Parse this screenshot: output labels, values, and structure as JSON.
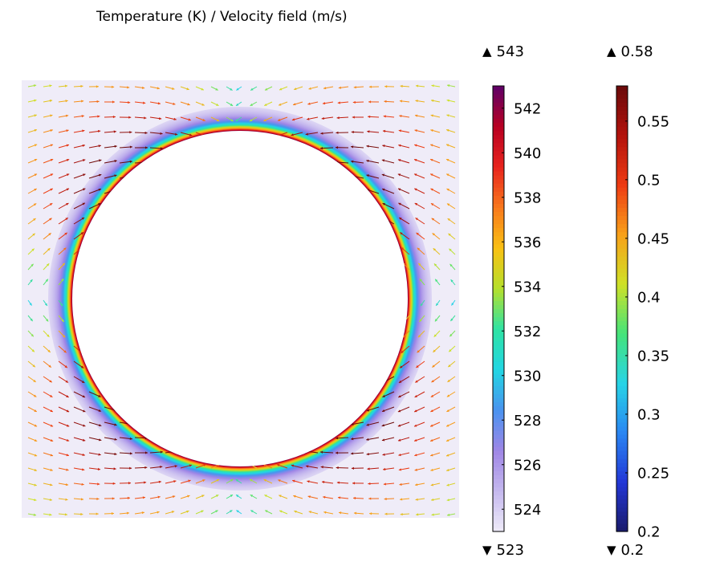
{
  "chart_data": {
    "type": "heatmap",
    "title": "Temperature (K) / Velocity field (m/s)",
    "temperature_colorbar": {
      "max_label": "543",
      "min_label": "523",
      "range": [
        523,
        543
      ],
      "ticks": [
        "542",
        "540",
        "538",
        "536",
        "534",
        "532",
        "530",
        "528",
        "526",
        "524"
      ],
      "tick_values": [
        542,
        540,
        538,
        536,
        534,
        532,
        530,
        528,
        526,
        524
      ],
      "colormap": [
        "#efecf8",
        "#c5b8ee",
        "#9f86e6",
        "#4a93ef",
        "#22d6e3",
        "#2fe3a4",
        "#b5e02c",
        "#f9c113",
        "#f9791d",
        "#e8241d",
        "#b80022",
        "#5e0067"
      ]
    },
    "velocity_colorbar": {
      "max_label": "0.58",
      "min_label": "0.2",
      "range": [
        0.2,
        0.58
      ],
      "ticks": [
        "0.55",
        "0.5",
        "0.45",
        "0.4",
        "0.35",
        "0.3",
        "0.25",
        "0.2"
      ],
      "tick_values": [
        0.55,
        0.5,
        0.45,
        0.4,
        0.35,
        0.3,
        0.25,
        0.2
      ],
      "colormap": [
        "#1a1b6a",
        "#2337d6",
        "#2a86f2",
        "#27d4e6",
        "#45e37a",
        "#cfe127",
        "#f8a11a",
        "#ee3b13",
        "#b3130c",
        "#6a0a0a"
      ]
    },
    "domain": {
      "background_temperature": 523,
      "hole_boundary_temperature": 543
    },
    "symbols": {
      "max": "▲",
      "min": "▼"
    }
  }
}
